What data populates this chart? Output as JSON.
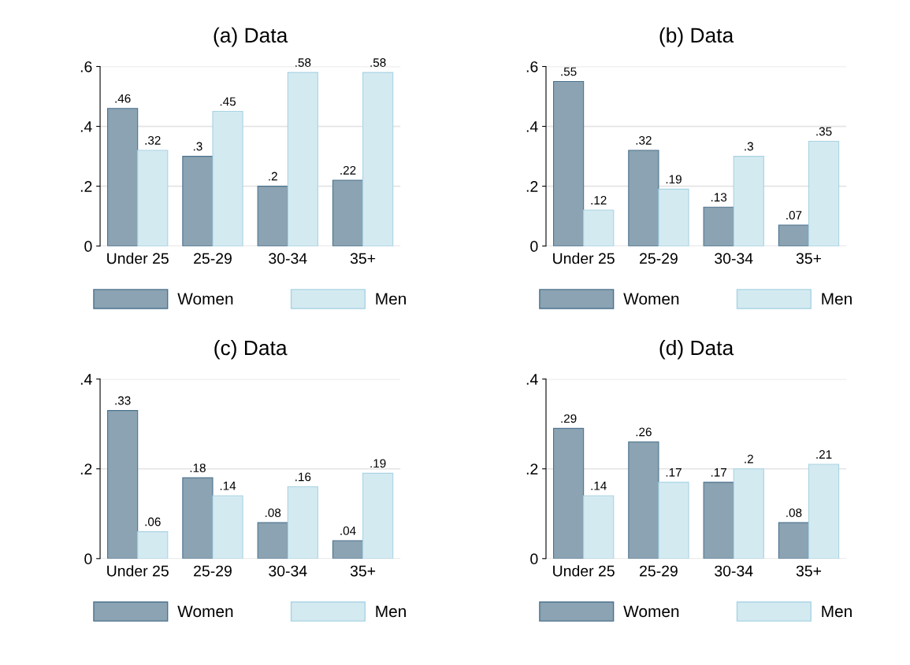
{
  "chart_data": [
    {
      "type": "bar",
      "title": "(a) Data",
      "categories": [
        "Under 25",
        "25-29",
        "30-34",
        "35+"
      ],
      "ylim": [
        0,
        0.6
      ],
      "yticks": [
        0,
        {
          "value": 0.2,
          "label": ".2"
        },
        {
          "value": 0.4,
          "label": ".4"
        },
        {
          "value": 0.6,
          "label": ".6"
        }
      ],
      "grid": "y",
      "legend": "bottom",
      "series": [
        {
          "name": "Women",
          "color": "#8ba3b2",
          "values": [
            0.46,
            0.3,
            0.2,
            0.22
          ],
          "value_labels": [
            ".46",
            ".3",
            ".2",
            ".22"
          ]
        },
        {
          "name": "Men",
          "color": "#d4eaf1",
          "values": [
            0.32,
            0.45,
            0.58,
            0.58
          ],
          "value_labels": [
            ".32",
            ".45",
            ".58",
            ".58"
          ]
        }
      ]
    },
    {
      "type": "bar",
      "title": "(b) Data",
      "categories": [
        "Under 25",
        "25-29",
        "30-34",
        "35+"
      ],
      "ylim": [
        0,
        0.6
      ],
      "yticks": [
        0,
        {
          "value": 0.2,
          "label": ".2"
        },
        {
          "value": 0.4,
          "label": ".4"
        },
        {
          "value": 0.6,
          "label": ".6"
        }
      ],
      "grid": "y",
      "legend": "bottom",
      "series": [
        {
          "name": "Women",
          "color": "#8ba3b2",
          "values": [
            0.55,
            0.32,
            0.13,
            0.07
          ],
          "value_labels": [
            ".55",
            ".32",
            ".13",
            ".07"
          ]
        },
        {
          "name": "Men",
          "color": "#d4eaf1",
          "values": [
            0.12,
            0.19,
            0.3,
            0.35
          ],
          "value_labels": [
            ".12",
            ".19",
            ".3",
            ".35"
          ]
        }
      ]
    },
    {
      "type": "bar",
      "title": "(c) Data",
      "categories": [
        "Under 25",
        "25-29",
        "30-34",
        "35+"
      ],
      "ylim": [
        0,
        0.4
      ],
      "yticks": [
        0,
        {
          "value": 0.2,
          "label": ".2"
        },
        {
          "value": 0.4,
          "label": ".4"
        }
      ],
      "grid": "y",
      "legend": "bottom",
      "series": [
        {
          "name": "Women",
          "color": "#8ba3b2",
          "values": [
            0.33,
            0.18,
            0.08,
            0.04
          ],
          "value_labels": [
            ".33",
            ".18",
            ".08",
            ".04"
          ]
        },
        {
          "name": "Men",
          "color": "#d4eaf1",
          "values": [
            0.06,
            0.14,
            0.16,
            0.19
          ],
          "value_labels": [
            ".06",
            ".14",
            ".16",
            ".19"
          ]
        }
      ]
    },
    {
      "type": "bar",
      "title": "(d) Data",
      "categories": [
        "Under 25",
        "25-29",
        "30-34",
        "35+"
      ],
      "ylim": [
        0,
        0.4
      ],
      "yticks": [
        0,
        {
          "value": 0.2,
          "label": ".2"
        },
        {
          "value": 0.4,
          "label": ".4"
        }
      ],
      "grid": "y",
      "legend": "bottom",
      "series": [
        {
          "name": "Women",
          "color": "#8ba3b2",
          "values": [
            0.29,
            0.26,
            0.17,
            0.08
          ],
          "value_labels": [
            ".29",
            ".26",
            ".17",
            ".08"
          ]
        },
        {
          "name": "Men",
          "color": "#d4eaf1",
          "values": [
            0.14,
            0.17,
            0.2,
            0.21
          ],
          "value_labels": [
            ".14",
            ".17",
            ".2",
            ".21"
          ]
        }
      ]
    }
  ]
}
